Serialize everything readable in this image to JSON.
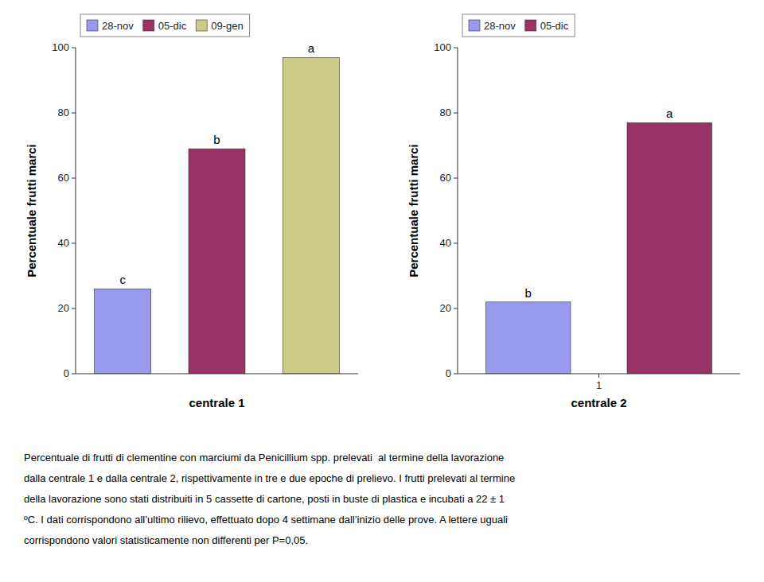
{
  "chart_data": [
    {
      "type": "bar",
      "xlabel": "centrale 1",
      "ylabel": "Percentuale frutti marci",
      "categories": [
        null
      ],
      "series": [
        {
          "name": "28-nov",
          "color": "#9999ee",
          "values": [
            26
          ],
          "annotations": [
            "c"
          ]
        },
        {
          "name": "05-dic",
          "color": "#993366",
          "values": [
            69
          ],
          "annotations": [
            "b"
          ]
        },
        {
          "name": "09-gen",
          "color": "#cccc88",
          "values": [
            97
          ],
          "annotations": [
            "a"
          ]
        }
      ],
      "ylim": [
        0,
        100
      ],
      "yticks": [
        0,
        20,
        40,
        60,
        80,
        100
      ],
      "tick_labels": "y",
      "legend": "upper left",
      "grid": false
    },
    {
      "type": "bar",
      "xlabel": "centrale 2",
      "ylabel": "Percentuale frutti marci",
      "categories": [
        "1"
      ],
      "series": [
        {
          "name": "28-nov",
          "color": "#9999ee",
          "values": [
            22
          ],
          "annotations": [
            "b"
          ]
        },
        {
          "name": "05-dic",
          "color": "#993366",
          "values": [
            77
          ],
          "annotations": [
            "a"
          ]
        }
      ],
      "ylim": [
        0,
        100
      ],
      "yticks": [
        0,
        20,
        40,
        60,
        80,
        100
      ],
      "legend": "upper left",
      "grid": false
    }
  ],
  "caption": [
    "Percentuale di frutti di clementine con marciumi da Penicillium spp. prelevati  al termine della lavorazione",
    "dalla centrale 1 e dalla centrale 2, rispettivamente in tre e due epoche di prelievo. I frutti prelevati al termine",
    "della lavorazione sono stati distribuiti in 5 cassette di cartone, posti in buste di plastica e incubati a 22 ± 1",
    "ºC. I dati corrispondono all’ultimo rilievo, effettuato dopo 4 settimane dall’inizio delle prove. A lettere uguali",
    "corrispondono valori statisticamente non differenti per P=0,05."
  ]
}
